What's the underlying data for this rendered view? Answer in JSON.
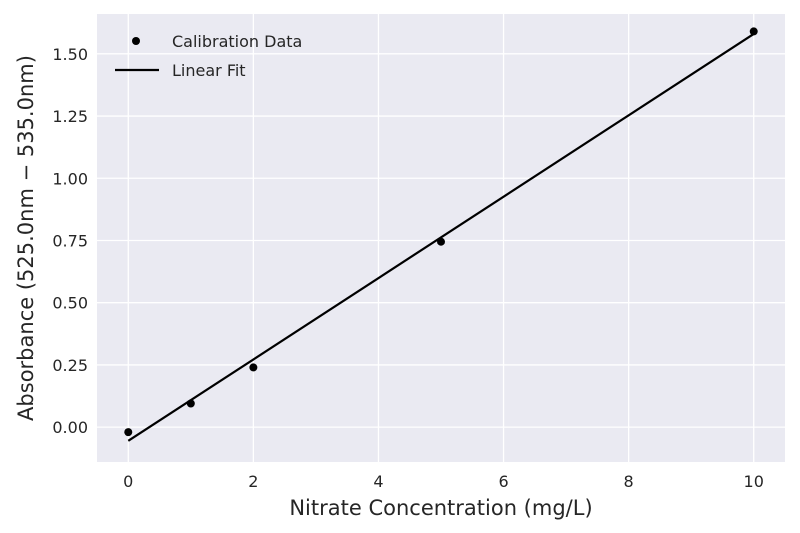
{
  "chart_data": {
    "type": "scatter",
    "xlabel": "Nitrate Concentration (mg/L)",
    "ylabel": "Absorbance (525.0nm − 535.0nm)",
    "xlim": [
      -0.5,
      10.5
    ],
    "ylim": [
      -0.14,
      1.66
    ],
    "x_ticks": [
      0,
      2,
      4,
      6,
      8,
      10
    ],
    "x_tick_labels": [
      "0",
      "2",
      "4",
      "6",
      "8",
      "10"
    ],
    "y_ticks": [
      0.0,
      0.25,
      0.5,
      0.75,
      1.0,
      1.25,
      1.5
    ],
    "y_tick_labels": [
      "0.00",
      "0.25",
      "0.50",
      "0.75",
      "1.00",
      "1.25",
      "1.50"
    ],
    "grid": true,
    "legend_position": "top-left",
    "background_color": "#eaeaf2",
    "series": [
      {
        "name": "Calibration Data",
        "kind": "scatter",
        "color": "#000000",
        "x": [
          0,
          1,
          2,
          5,
          10
        ],
        "y": [
          -0.02,
          0.095,
          0.24,
          0.745,
          1.59
        ]
      },
      {
        "name": "Linear Fit",
        "kind": "line",
        "color": "#000000",
        "x": [
          0,
          10
        ],
        "y": [
          -0.055,
          1.58
        ]
      }
    ]
  }
}
